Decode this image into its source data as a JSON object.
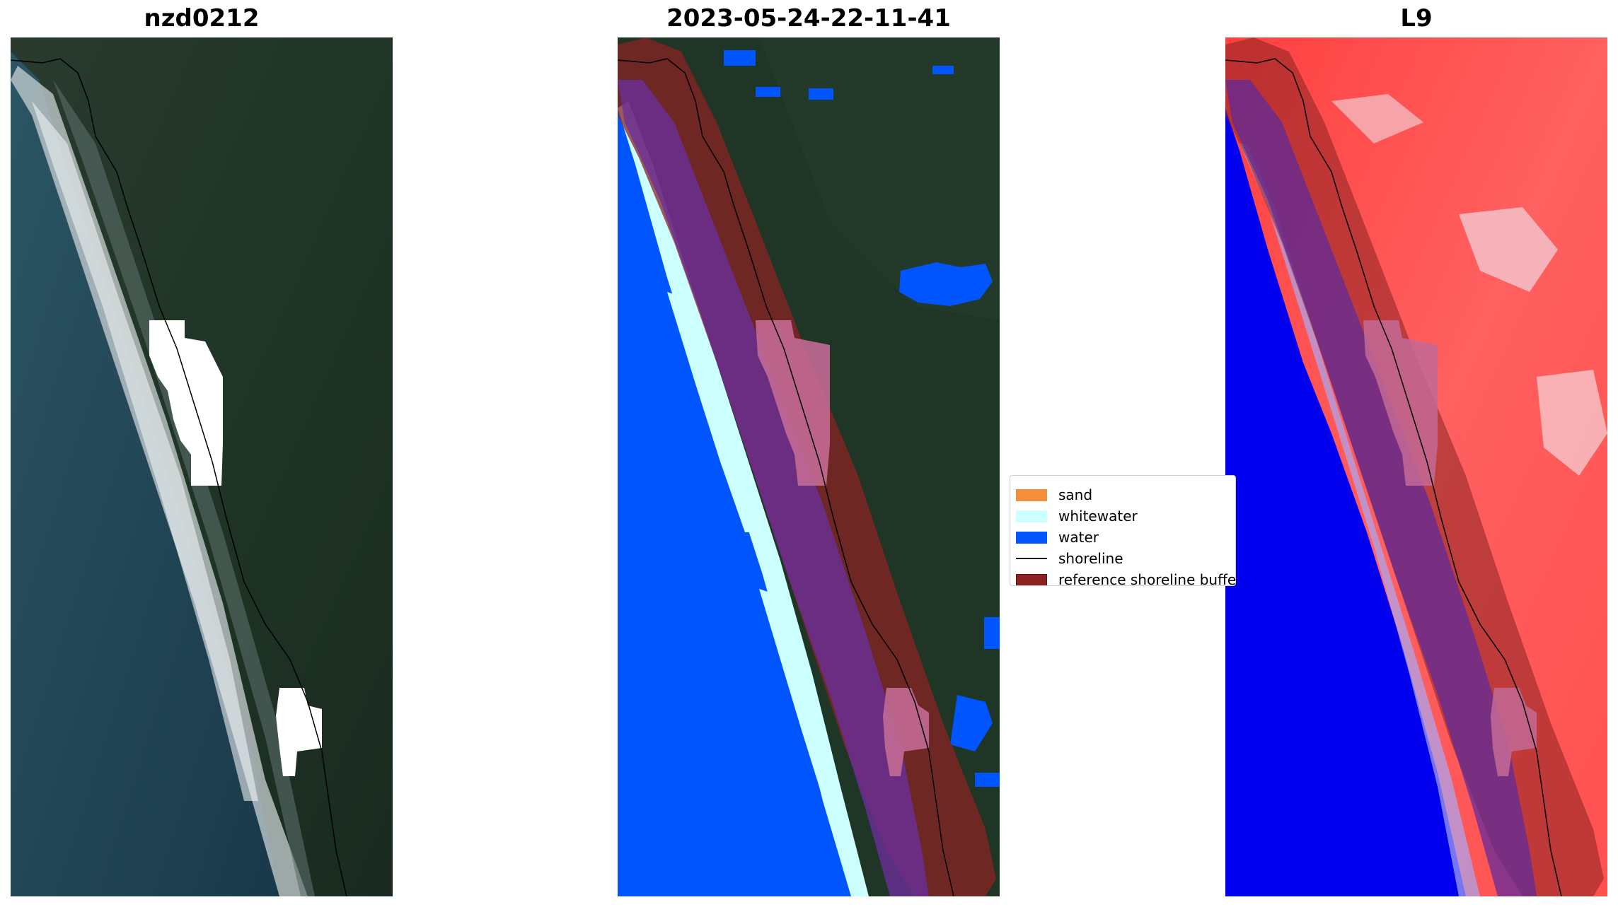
{
  "panels": [
    {
      "title": "nzd0212"
    },
    {
      "title": "2023-05-24-22-11-41"
    },
    {
      "title": "L9"
    }
  ],
  "legend": {
    "items": [
      {
        "label": "sand",
        "color": "#f28e3c",
        "kind": "patch"
      },
      {
        "label": "whitewater",
        "color": "#ccffff",
        "kind": "patch"
      },
      {
        "label": "water",
        "color": "#0055ff",
        "kind": "patch"
      },
      {
        "label": "shoreline",
        "color": "#000000",
        "kind": "line"
      },
      {
        "label": "reference shoreline buffer",
        "color": "#8b2323",
        "kind": "patch"
      }
    ]
  },
  "colors": {
    "ocean": "#1c3f4f",
    "land": "#1f2e26",
    "surf": "#d6dde0",
    "cloud_mask": "#ffffff",
    "classified_water": "#0055ff",
    "classified_whitewater": "#ccffff",
    "buffer": "#8b2323",
    "index_high": "#ff3333",
    "index_low": "#0000ee"
  }
}
